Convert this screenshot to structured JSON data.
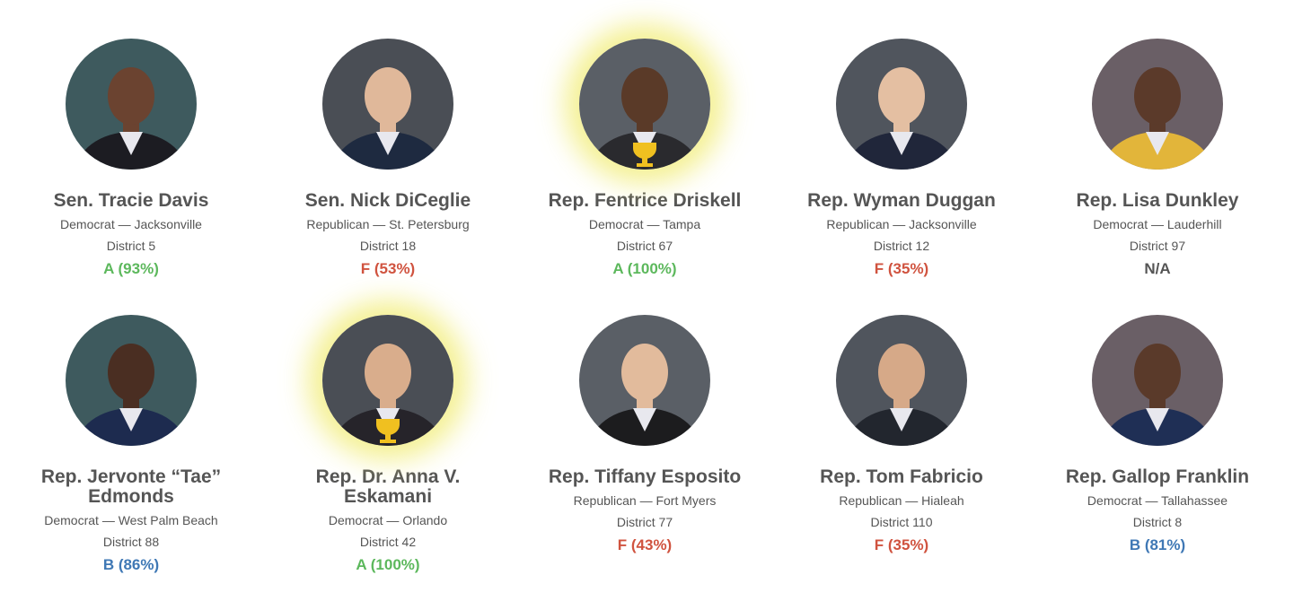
{
  "cards": [
    {
      "name": "Sen. Tracie Davis",
      "party_city": "Democrat — Jacksonville",
      "district": "District 5",
      "grade": "A (93%)",
      "grade_color": "#5cb85c",
      "highlight": false
    },
    {
      "name": "Sen. Nick DiCeglie",
      "party_city": "Republican — St. Petersburg",
      "district": "District 18",
      "grade": "F (53%)",
      "grade_color": "#d0533f",
      "highlight": false
    },
    {
      "name": "Rep. Fentrice Driskell",
      "party_city": "Democrat — Tampa",
      "district": "District 67",
      "grade": "A (100%)",
      "grade_color": "#5cb85c",
      "highlight": true
    },
    {
      "name": "Rep. Wyman Duggan",
      "party_city": "Republican — Jacksonville",
      "district": "District 12",
      "grade": "F (35%)",
      "grade_color": "#d0533f",
      "highlight": false
    },
    {
      "name": "Rep. Lisa Dunkley",
      "party_city": "Democrat — Lauderhill",
      "district": "District 97",
      "grade": "N/A",
      "grade_color": "#555555",
      "highlight": false
    },
    {
      "name": "Rep. Jervonte “Tae” Edmonds",
      "party_city": "Democrat — West Palm Beach",
      "district": "District 88",
      "grade": "B (86%)",
      "grade_color": "#3f78b5",
      "highlight": false
    },
    {
      "name": "Rep. Dr. Anna V. Eskamani",
      "party_city": "Democrat — Orlando",
      "district": "District 42",
      "grade": "A (100%)",
      "grade_color": "#5cb85c",
      "highlight": true
    },
    {
      "name": "Rep. Tiffany Esposito",
      "party_city": "Republican — Fort Myers",
      "district": "District 77",
      "grade": "F (43%)",
      "grade_color": "#d0533f",
      "highlight": false
    },
    {
      "name": "Rep. Tom Fabricio",
      "party_city": "Republican — Hialeah",
      "district": "District 110",
      "grade": "F (35%)",
      "grade_color": "#d0533f",
      "highlight": false
    },
    {
      "name": "Rep. Gallop Franklin",
      "party_city": "Democrat — Tallahassee",
      "district": "District 8",
      "grade": "B (81%)",
      "grade_color": "#3f78b5",
      "highlight": false
    }
  ]
}
